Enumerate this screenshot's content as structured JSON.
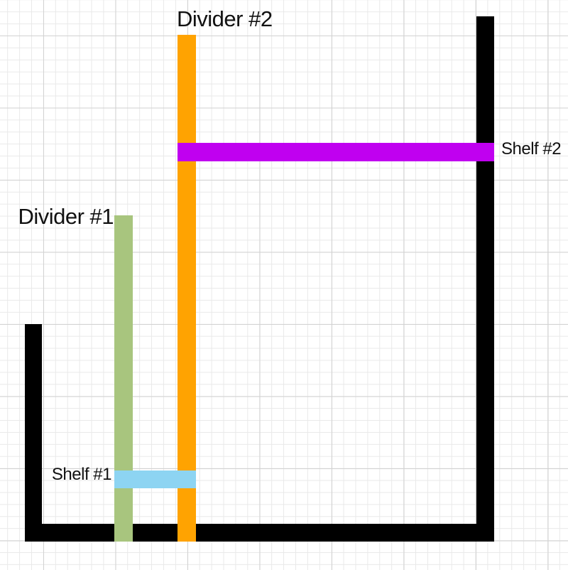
{
  "labels": {
    "divider_1": "Divider #1",
    "divider_2": "Divider #2",
    "shelf_1": "Shelf #1",
    "shelf_2": "Shelf #2"
  },
  "colors": {
    "container": "#000000",
    "divider_1": "#a8c57e",
    "divider_2": "#ffa301",
    "shelf_1": "#8dd4f2",
    "shelf_2": "#c000f0",
    "grid_minor": "#e9e9e9",
    "grid_major": "#d2d2d2",
    "background": "#ffffff",
    "text": "#111111"
  }
}
